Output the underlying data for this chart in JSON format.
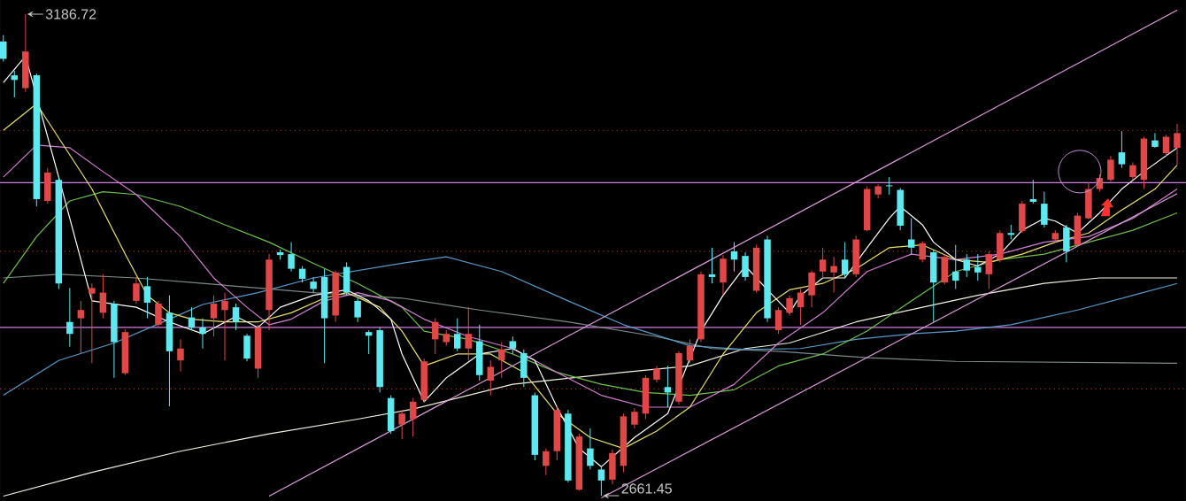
{
  "chart_data": {
    "type": "candlestick",
    "categories": [
      null,
      null,
      null,
      null,
      null,
      null,
      null,
      null,
      null,
      null,
      null,
      null,
      null,
      null,
      null,
      null,
      null,
      null,
      null,
      null,
      null,
      null,
      null,
      null,
      null,
      null,
      null,
      null,
      null,
      null,
      null,
      null,
      null,
      null,
      null,
      null,
      null,
      null,
      null,
      null,
      null,
      null,
      null,
      null,
      null,
      null,
      null,
      null,
      null,
      null,
      null,
      null,
      null,
      null,
      null,
      null,
      null,
      null,
      null,
      null,
      null,
      null,
      null,
      null,
      null,
      null,
      null,
      null,
      null,
      null,
      null,
      null,
      null,
      null,
      null,
      null,
      null,
      null,
      null,
      null,
      null,
      null,
      null,
      null,
      null,
      null,
      null,
      null,
      null,
      null,
      null,
      null,
      null,
      null,
      null,
      null,
      null,
      null,
      null,
      null,
      null,
      null,
      null,
      null,
      null,
      null,
      null
    ],
    "ohlc": [
      [
        3157,
        3164,
        3135,
        3138
      ],
      [
        3120,
        3125,
        3096,
        3115
      ],
      [
        3106,
        3186.72,
        3102,
        3146
      ],
      [
        3120,
        3122,
        2977,
        2985
      ],
      [
        2983,
        3019,
        2980,
        3014
      ],
      [
        3006,
        3009,
        2887,
        2893
      ],
      [
        2851,
        2888,
        2824,
        2838
      ],
      [
        2855,
        2874,
        2816,
        2864
      ],
      [
        2882,
        2893,
        2806,
        2888
      ],
      [
        2861,
        2903,
        2855,
        2883
      ],
      [
        2871,
        2874,
        2790,
        2829
      ],
      [
        2795,
        2843,
        2793,
        2840
      ],
      [
        2874,
        2900,
        2871,
        2893
      ],
      [
        2890,
        2900,
        2855,
        2872
      ],
      [
        2848,
        2874,
        2845,
        2871
      ],
      [
        2861,
        2880,
        2759,
        2819
      ],
      [
        2809,
        2832,
        2797,
        2822
      ],
      [
        2856,
        2867,
        2842,
        2845
      ],
      [
        2845,
        2855,
        2822,
        2838
      ],
      [
        2855,
        2880,
        2835,
        2871
      ],
      [
        2864,
        2883,
        2809,
        2874
      ],
      [
        2867,
        2871,
        2842,
        2851
      ],
      [
        2836,
        2838,
        2808,
        2811
      ],
      [
        2800,
        2848,
        2790,
        2845
      ],
      [
        2864,
        2925,
        2842,
        2919
      ],
      [
        2927,
        2930,
        2919,
        2924
      ],
      [
        2925,
        2938,
        2906,
        2909
      ],
      [
        2909,
        2912,
        2894,
        2898
      ],
      [
        2895,
        2900,
        2883,
        2887
      ],
      [
        2900,
        2909,
        2806,
        2855
      ],
      [
        2858,
        2907,
        2851,
        2905
      ],
      [
        2911,
        2916,
        2880,
        2883
      ],
      [
        2874,
        2877,
        2851,
        2856
      ],
      [
        2840,
        2842,
        2816,
        2836
      ],
      [
        2842,
        2845,
        2774,
        2780
      ],
      [
        2768,
        2771,
        2729,
        2732
      ],
      [
        2739,
        2755,
        2723,
        2751
      ],
      [
        2745,
        2768,
        2726,
        2764
      ],
      [
        2766,
        2811,
        2763,
        2808
      ],
      [
        2832,
        2855,
        2816,
        2851
      ],
      [
        2829,
        2842,
        2825,
        2838
      ],
      [
        2838,
        2855,
        2819,
        2822
      ],
      [
        2822,
        2867,
        2809,
        2838
      ],
      [
        2830,
        2848,
        2787,
        2793
      ],
      [
        2787,
        2809,
        2771,
        2802
      ],
      [
        2809,
        2829,
        2790,
        2821
      ],
      [
        2830,
        2835,
        2816,
        2822
      ],
      [
        2817,
        2821,
        2780,
        2790
      ],
      [
        2771,
        2774,
        2700,
        2706
      ],
      [
        2694,
        2713,
        2684,
        2710
      ],
      [
        2710,
        2758,
        2700,
        2755
      ],
      [
        2751,
        2755,
        2676,
        2678
      ],
      [
        2668,
        2729,
        2667,
        2726
      ],
      [
        2713,
        2735,
        2690,
        2694
      ],
      [
        2690,
        2694,
        2661.45,
        2678
      ],
      [
        2679,
        2712,
        2674,
        2708
      ],
      [
        2694,
        2751,
        2687,
        2748
      ],
      [
        2739,
        2757,
        2735,
        2753
      ],
      [
        2751,
        2793,
        2745,
        2790
      ],
      [
        2788,
        2803,
        2785,
        2800
      ],
      [
        2780,
        2803,
        2758,
        2774
      ],
      [
        2764,
        2819,
        2761,
        2817
      ],
      [
        2809,
        2832,
        2806,
        2825
      ],
      [
        2832,
        2906,
        2829,
        2903
      ],
      [
        2903,
        2932,
        2893,
        2900
      ],
      [
        2894,
        2924,
        2880,
        2920
      ],
      [
        2928,
        2938,
        2906,
        2919
      ],
      [
        2923,
        2927,
        2896,
        2900
      ],
      [
        2885,
        2935,
        2883,
        2932
      ],
      [
        2941,
        2945,
        2851,
        2855
      ],
      [
        2842,
        2867,
        2838,
        2864
      ],
      [
        2861,
        2880,
        2858,
        2877
      ],
      [
        2867,
        2887,
        2848,
        2883
      ],
      [
        2880,
        2907,
        2867,
        2905
      ],
      [
        2906,
        2932,
        2900,
        2919
      ],
      [
        2905,
        2922,
        2883,
        2912
      ],
      [
        2919,
        2938,
        2900,
        2903
      ],
      [
        2903,
        2945,
        2900,
        2941
      ],
      [
        2951,
        2999,
        2950,
        2996
      ],
      [
        2990,
        3001,
        2986,
        2999
      ],
      [
        3000,
        3009,
        2990,
        2999
      ],
      [
        2995,
        2997,
        2951,
        2956
      ],
      [
        2941,
        2964,
        2925,
        2932
      ],
      [
        2919,
        2939,
        2916,
        2937
      ],
      [
        2927,
        2929,
        2851,
        2894
      ],
      [
        2894,
        2925,
        2892,
        2922
      ],
      [
        2906,
        2935,
        2887,
        2896
      ],
      [
        2919,
        2925,
        2900,
        2907
      ],
      [
        2911,
        2925,
        2896,
        2905
      ],
      [
        2903,
        2928,
        2887,
        2925
      ],
      [
        2919,
        2951,
        2916,
        2948
      ],
      [
        2948,
        2957,
        2941,
        2946
      ],
      [
        2950,
        2983,
        2948,
        2980
      ],
      [
        2985,
        3006,
        2980,
        2982
      ],
      [
        2980,
        2993,
        2954,
        2957
      ],
      [
        2941,
        2951,
        2938,
        2948
      ],
      [
        2954,
        2957,
        2916,
        2928
      ],
      [
        2935,
        2970,
        2933,
        2967
      ],
      [
        2964,
        3003,
        2963,
        2996
      ],
      [
        2996,
        3012,
        2993,
        3008
      ],
      [
        3006,
        3032,
        3004,
        3028
      ],
      [
        3036,
        3059,
        3019,
        3023
      ],
      [
        3009,
        3025,
        3006,
        3022
      ],
      [
        3006,
        3053,
        2996,
        3051
      ],
      [
        3049,
        3057,
        3041,
        3042
      ],
      [
        3035,
        3055,
        3032,
        3053
      ],
      [
        3041,
        3067,
        3022,
        3057
      ]
    ],
    "colors": [
      "#5ee8f0",
      "#5ee8f0",
      "#e04848",
      "#5ee8f0",
      "#e04848",
      "#5ee8f0",
      "#5ee8f0",
      "#e04848",
      "#e04848",
      "#e04848",
      "#5ee8f0",
      "#e04848",
      "#e04848",
      "#5ee8f0",
      "#e04848",
      "#5ee8f0",
      "#e04848",
      "#5ee8f0",
      "#5ee8f0",
      "#e04848",
      "#e04848",
      "#5ee8f0",
      "#5ee8f0",
      "#e04848",
      "#e04848",
      "#5ee8f0",
      "#5ee8f0",
      "#5ee8f0",
      "#5ee8f0",
      "#5ee8f0",
      "#e04848",
      "#5ee8f0",
      "#5ee8f0",
      "#5ee8f0",
      "#5ee8f0",
      "#5ee8f0",
      "#e04848",
      "#e04848",
      "#e04848",
      "#e04848",
      "#e04848",
      "#5ee8f0",
      "#e04848",
      "#5ee8f0",
      "#e04848",
      "#e04848",
      "#5ee8f0",
      "#5ee8f0",
      "#5ee8f0",
      "#e04848",
      "#e04848",
      "#5ee8f0",
      "#e04848",
      "#5ee8f0",
      "#5ee8f0",
      "#e04848",
      "#e04848",
      "#e04848",
      "#e04848",
      "#e04848",
      "#5ee8f0",
      "#e04848",
      "#e04848",
      "#e04848",
      "#5ee8f0",
      "#e04848",
      "#5ee8f0",
      "#5ee8f0",
      "#e04848",
      "#5ee8f0",
      "#e04848",
      "#e04848",
      "#e04848",
      "#e04848",
      "#e04848",
      "#e04848",
      "#5ee8f0",
      "#e04848",
      "#e04848",
      "#e04848",
      "#5ee8f0",
      "#5ee8f0",
      "#5ee8f0",
      "#e04848",
      "#5ee8f0",
      "#e04848",
      "#5ee8f0",
      "#5ee8f0",
      "#5ee8f0",
      "#e04848",
      "#e04848",
      "#5ee8f0",
      "#e04848",
      "#5ee8f0",
      "#5ee8f0",
      "#e04848",
      "#5ee8f0",
      "#e04848",
      "#e04848",
      "#e04848",
      "#e04848",
      "#5ee8f0",
      "#e04848",
      "#e04848",
      "#5ee8f0",
      "#e04848",
      "#e04848"
    ],
    "series": [
      {
        "type": "line",
        "color": "#f4f0e0",
        "values": [
          2661,
          null,
          null,
          null,
          null,
          null,
          null,
          null,
          2687,
          null,
          null,
          null,
          null,
          null,
          null,
          null,
          2710,
          null,
          null,
          null,
          null,
          null,
          null,
          null,
          2729,
          null,
          null,
          null,
          null,
          null,
          null,
          null,
          2745,
          null,
          null,
          null,
          null,
          2756,
          null,
          null,
          null,
          null,
          null,
          null,
          null,
          null,
          2783,
          null,
          null,
          null,
          null,
          null,
          null,
          null,
          null,
          null,
          2796,
          null,
          null,
          null,
          null,
          null,
          2803,
          null,
          null,
          null,
          null,
          2822,
          null,
          null,
          null,
          2828,
          null,
          null,
          null,
          null,
          null,
          2851,
          null,
          null,
          null,
          null,
          null,
          2867,
          null,
          null,
          null,
          null,
          2880,
          null,
          null,
          null,
          null,
          null,
          2893,
          null,
          null,
          null,
          null,
          2899,
          null,
          null,
          null,
          null,
          null,
          null,
          2899
        ]
      },
      {
        "type": "line",
        "color": "#7a8a8a",
        "values": [
          2899,
          null,
          null,
          null,
          null,
          2903,
          null,
          null,
          null,
          null,
          null,
          null,
          2899,
          null,
          null,
          null,
          null,
          null,
          2893,
          null,
          null,
          null,
          null,
          2888,
          null,
          null,
          null,
          null,
          2883,
          null,
          null,
          null,
          null,
          null,
          null,
          null,
          2877,
          null,
          null,
          null,
          null,
          null,
          null,
          2864,
          null,
          null,
          null,
          null,
          null,
          null,
          null,
          2851,
          null,
          null,
          null,
          null,
          null,
          null,
          null,
          2835,
          null,
          null,
          null,
          null,
          2822,
          null,
          null,
          null,
          null,
          null,
          2819,
          null,
          null,
          null,
          null,
          null,
          null,
          null,
          2812,
          null,
          null,
          null,
          null,
          null,
          null,
          null,
          2808,
          null,
          null,
          null,
          null,
          null,
          null,
          null,
          null,
          null,
          null,
          null,
          null,
          null,
          null,
          null,
          null,
          null,
          null,
          null,
          2806
        ]
      },
      {
        "type": "line",
        "color": "#5a9ac8",
        "values": [
          2771,
          null,
          null,
          null,
          null,
          2809,
          null,
          null,
          null,
          null,
          2828,
          null,
          null,
          null,
          null,
          2854,
          null,
          null,
          2870,
          null,
          null,
          null,
          null,
          2883,
          null,
          null,
          null,
          null,
          2899,
          null,
          null,
          null,
          null,
          null,
          null,
          null,
          2915,
          null,
          null,
          null,
          2922,
          null,
          null,
          null,
          null,
          2906,
          null,
          null,
          null,
          null,
          null,
          2874,
          null,
          null,
          null,
          null,
          2848,
          null,
          null,
          null,
          null,
          null,
          2825,
          null,
          null,
          null,
          null,
          2821,
          null,
          null,
          null,
          null,
          2822,
          null,
          null,
          null,
          null,
          2832,
          null,
          null,
          null,
          null,
          2838,
          null,
          null,
          null,
          2841,
          null,
          null,
          null,
          null,
          2848,
          null,
          null,
          null,
          null,
          null,
          2864,
          null,
          null,
          null,
          null,
          2880,
          null,
          null,
          null,
          2893
        ]
      },
      {
        "type": "line",
        "color": "#70c050",
        "values": [
          2893,
          null,
          null,
          2944,
          null,
          null,
          2983,
          null,
          null,
          2993,
          null,
          null,
          2990,
          null,
          null,
          null,
          2977,
          null,
          null,
          null,
          2957,
          null,
          null,
          null,
          2938,
          null,
          null,
          null,
          2915,
          null,
          null,
          null,
          2893,
          null,
          null,
          null,
          2867,
          null,
          2841,
          null,
          null,
          null,
          2832,
          null,
          null,
          null,
          2816,
          null,
          null,
          null,
          2796,
          null,
          null,
          null,
          2783,
          null,
          null,
          null,
          2774,
          null,
          null,
          null,
          2771,
          null,
          null,
          null,
          2777,
          null,
          null,
          null,
          2803,
          null,
          null,
          null,
          2816,
          null,
          null,
          null,
          2841,
          null,
          null,
          null,
          2874,
          null,
          null,
          null,
          2906,
          null,
          null,
          null,
          2919,
          null,
          null,
          null,
          2925,
          null,
          null,
          null,
          2938,
          null,
          null,
          null,
          2951,
          null,
          null,
          null,
          2970
        ]
      },
      {
        "type": "line",
        "color": "#d080d0",
        "values": [
          3009,
          null,
          null,
          3044,
          null,
          null,
          3041,
          null,
          null,
          3015,
          null,
          null,
          2990,
          null,
          null,
          null,
          2944,
          null,
          null,
          2899,
          null,
          null,
          2867,
          null,
          2848,
          null,
          2854,
          null,
          null,
          2874,
          null,
          null,
          2883,
          null,
          null,
          2874,
          null,
          null,
          2854,
          null,
          null,
          null,
          2835,
          null,
          null,
          null,
          2822,
          null,
          null,
          null,
          2796,
          null,
          null,
          null,
          2771,
          null,
          null,
          null,
          2758,
          null,
          null,
          null,
          2758,
          null,
          null,
          null,
          2783,
          null,
          null,
          null,
          2828,
          null,
          null,
          null,
          2861,
          null,
          null,
          null,
          2906,
          null,
          null,
          null,
          2925,
          null,
          null,
          null,
          2919,
          null,
          null,
          null,
          2925,
          null,
          null,
          null,
          2938,
          null,
          null,
          null,
          2944,
          null,
          null,
          null,
          2964,
          null,
          null,
          null,
          2996
        ]
      },
      {
        "type": "line",
        "color": "#e8e070",
        "values": [
          3060,
          null,
          null,
          3089,
          null,
          null,
          null,
          null,
          2996,
          null,
          null,
          2925,
          null,
          2880,
          null,
          2861,
          null,
          2854,
          null,
          null,
          2851,
          null,
          null,
          2851,
          null,
          null,
          2861,
          null,
          null,
          2877,
          null,
          2883,
          null,
          null,
          2867,
          null,
          2841,
          null,
          2803,
          null,
          null,
          2816,
          null,
          null,
          2816,
          null,
          null,
          2796,
          null,
          null,
          2751,
          null,
          null,
          2725,
          null,
          null,
          2713,
          null,
          null,
          2732,
          null,
          null,
          2758,
          null,
          null,
          2816,
          null,
          null,
          2861,
          null,
          null,
          2886,
          null,
          null,
          2893,
          null,
          null,
          2909,
          null,
          null,
          2932,
          null,
          null,
          2935,
          null,
          null,
          2919,
          null,
          null,
          2916,
          null,
          null,
          2925,
          null,
          null,
          2938,
          null,
          null,
          2948,
          null,
          null,
          2973,
          null,
          null,
          2996,
          null,
          3022
        ]
      },
      {
        "type": "line",
        "color": "#ffffff",
        "values": [
          3112,
          null,
          3141,
          null,
          null,
          3009,
          null,
          2919,
          2874,
          null,
          null,
          null,
          2867,
          null,
          null,
          2851,
          null,
          null,
          2838,
          null,
          null,
          2857,
          null,
          2845,
          null,
          2867,
          null,
          null,
          2880,
          null,
          null,
          2886,
          null,
          2874,
          null,
          2854,
          2816,
          null,
          2764,
          null,
          2790,
          null,
          null,
          2816,
          null,
          null,
          2822,
          null,
          2809,
          null,
          2758,
          null,
          2713,
          null,
          2693,
          null,
          null,
          2725,
          null,
          null,
          2751,
          null,
          null,
          2841,
          null,
          2880,
          null,
          2912,
          null,
          2886,
          null,
          2861,
          2880,
          null,
          2899,
          null,
          2899,
          null,
          2932,
          null,
          2964,
          2977,
          null,
          2957,
          2938,
          null,
          2919,
          null,
          2912,
          null,
          2925,
          null,
          2951,
          null,
          2964,
          2961,
          null,
          2948,
          null,
          2970,
          null,
          2996,
          null,
          3015,
          null,
          null,
          3041
        ]
      },
      {
        "type": "line",
        "color": "#e0a0e0",
        "values": [
          null,
          null,
          null,
          null,
          null,
          null,
          null,
          null,
          null,
          null,
          null,
          null,
          null,
          null,
          null,
          null,
          null,
          null,
          null,
          null,
          null,
          null,
          null,
          null,
          2661,
          null,
          null,
          null,
          null,
          null,
          null,
          null,
          null,
          null,
          null,
          null,
          null,
          null,
          null,
          null,
          null,
          null,
          null,
          null,
          null,
          null,
          null,
          null,
          null,
          null,
          null,
          null,
          null,
          null,
          null,
          null,
          null,
          null,
          null,
          null,
          null,
          null,
          null,
          null,
          null,
          null,
          null,
          null,
          null,
          null,
          null,
          null,
          null,
          null,
          null,
          null,
          null,
          null,
          null,
          null,
          null,
          null,
          null,
          null,
          null,
          null,
          null,
          null,
          null,
          null,
          null,
          null,
          null,
          null,
          null,
          null,
          null,
          null,
          null,
          null,
          null,
          null,
          null,
          null,
          null,
          null,
          3191
        ]
      },
      {
        "type": "line",
        "color": "#e0a0e0",
        "values": [
          null,
          null,
          null,
          null,
          null,
          null,
          null,
          null,
          null,
          null,
          null,
          null,
          null,
          null,
          null,
          null,
          null,
          null,
          null,
          null,
          null,
          null,
          null,
          null,
          null,
          null,
          null,
          null,
          null,
          null,
          null,
          null,
          null,
          null,
          null,
          null,
          null,
          null,
          null,
          null,
          null,
          null,
          null,
          null,
          null,
          null,
          null,
          null,
          null,
          null,
          null,
          null,
          null,
          null,
          2659,
          null,
          null,
          null,
          null,
          null,
          null,
          null,
          null,
          null,
          null,
          null,
          null,
          null,
          null,
          null,
          null,
          null,
          null,
          null,
          null,
          null,
          null,
          null,
          null,
          null,
          null,
          null,
          null,
          null,
          null,
          null,
          null,
          null,
          null,
          null,
          null,
          null,
          null,
          null,
          null,
          null,
          null,
          null,
          null,
          null,
          null,
          null,
          null,
          null,
          null,
          null,
          2991
        ]
      }
    ],
    "ref_lines": [
      {
        "axis": "y",
        "value": 3003,
        "color": "#d080e0",
        "line_style": "solid"
      },
      {
        "axis": "y",
        "value": 2845,
        "color": "#d080e0",
        "line_style": "solid"
      },
      {
        "axis": "y",
        "value": 3060,
        "color": "#a03030",
        "line_style": "dotted"
      },
      {
        "axis": "y",
        "value": 2928,
        "color": "#a03030",
        "line_style": "dotted"
      },
      {
        "axis": "y",
        "value": 2778,
        "color": "#a03030",
        "line_style": "dotted"
      }
    ],
    "annotations": [
      "3186.72",
      "2661.45"
    ],
    "ylim": [
      2655.7,
      3202.2
    ]
  }
}
